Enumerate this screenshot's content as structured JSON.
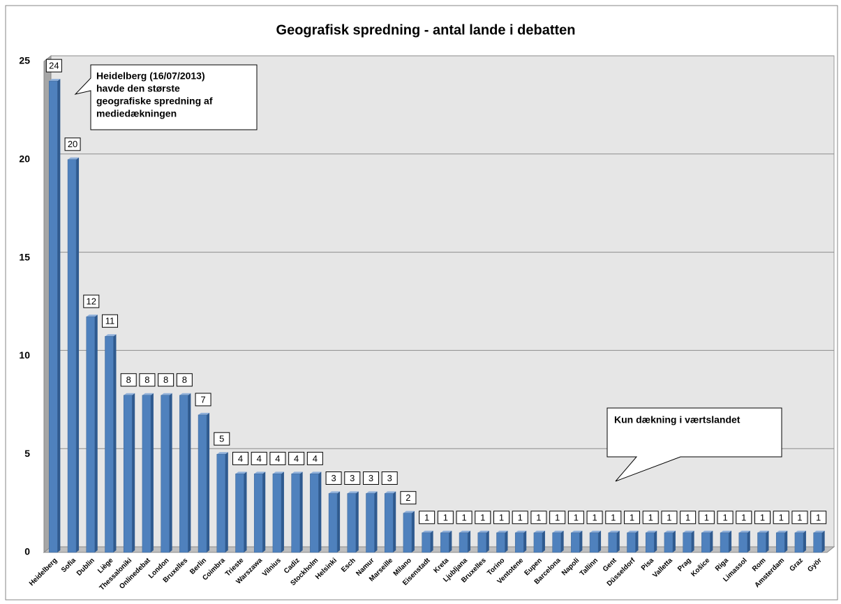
{
  "chart_data": {
    "type": "bar3d",
    "title": "Geografisk spredning - antal lande i debatten",
    "categories": [
      "Heidelberg",
      "Sofia",
      "Dublin",
      "Liège",
      "Thessaloniki",
      "Onlinedebat",
      "London",
      "Bruxelles",
      "Berlin",
      "Coimbra",
      "Trieste",
      "Warszawa",
      "Vilnius",
      "Cadiz",
      "Stockholm",
      "Helsinki",
      "Esch",
      "Namur",
      "Marseille",
      "Milano",
      "Eisenstadt",
      "Kreta",
      "Ljubljana",
      "Bruxelles",
      "Torino",
      "Ventotene",
      "Eupen",
      "Barcelona",
      "Napoli",
      "Tallinn",
      "Gent",
      "Düsseldorf",
      "Pisa",
      "Valletta",
      "Prag",
      "Košice",
      "Riga",
      "Limassol",
      "Rom",
      "Amsterdam",
      "Graz",
      "Györ"
    ],
    "values": [
      24,
      20,
      12,
      11,
      8,
      8,
      8,
      8,
      7,
      5,
      4,
      4,
      4,
      4,
      4,
      3,
      3,
      3,
      3,
      2,
      1,
      1,
      1,
      1,
      1,
      1,
      1,
      1,
      1,
      1,
      1,
      1,
      1,
      1,
      1,
      1,
      1,
      1,
      1,
      1,
      1,
      1
    ],
    "color": "#4f81bd",
    "ylim": [
      0,
      25
    ],
    "yticks": [
      0,
      5,
      10,
      15,
      20,
      25
    ],
    "grid": true,
    "annotations": [
      {
        "lines": [
          "Heidelberg (16/07/2013)",
          "havde den største",
          "geografiske spredning af",
          "mediedækningen"
        ]
      },
      {
        "lines": [
          "Kun dækning i værtslandet"
        ]
      }
    ]
  }
}
